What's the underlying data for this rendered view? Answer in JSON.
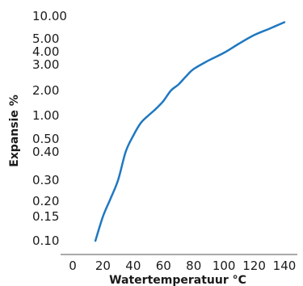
{
  "chart_data": {
    "type": "line",
    "title": "",
    "xlabel": "Watertemperatuur °C",
    "ylabel": "Expansie %",
    "xlim": [
      0,
      150
    ],
    "x_ticks": [
      0,
      20,
      40,
      60,
      80,
      100,
      120,
      140
    ],
    "x_tick_labels": [
      "0",
      "20",
      "40",
      "60",
      "80",
      "100",
      "120",
      "140"
    ],
    "y_ticks": [
      10,
      5,
      4,
      3,
      2,
      1,
      0.5,
      0.4,
      0.3,
      0.2,
      0.15,
      0.1
    ],
    "y_tick_labels": [
      "10.00",
      "5.00",
      "4.00",
      "3.00",
      "2.00",
      "1.00",
      "0.50",
      "0.40",
      "0.30",
      "0.20",
      "0.15",
      "0.10"
    ],
    "y_scale": "nonlinear",
    "grid": false,
    "line_color": "#1f78c1",
    "x": [
      15,
      20,
      25,
      30,
      35,
      40,
      45,
      50,
      55,
      60,
      65,
      70,
      75,
      80,
      90,
      100,
      110,
      120,
      130,
      140
    ],
    "y": [
      0.1,
      0.15,
      0.21,
      0.3,
      0.4,
      0.55,
      0.8,
      1.0,
      1.2,
      1.5,
      2.0,
      2.2,
      2.5,
      2.8,
      3.3,
      3.9,
      4.6,
      5.6,
      6.8,
      8.3
    ]
  }
}
